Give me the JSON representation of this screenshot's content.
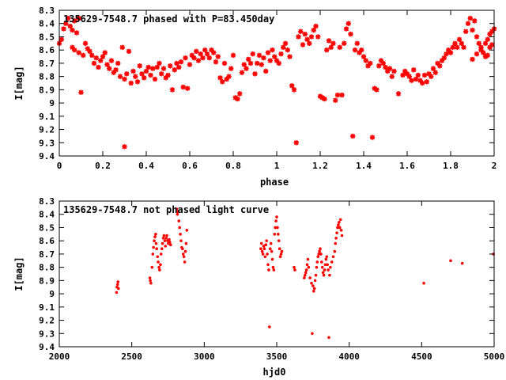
{
  "colors": {
    "points": "#ff0000",
    "axes": "#000000",
    "background": "#ffffff"
  },
  "chart_data": [
    {
      "type": "scatter",
      "title": "135629-7548.7 phased with P=83.450day",
      "xlabel": "phase",
      "ylabel": "I[mag]",
      "xlim": [
        0,
        2
      ],
      "ylim": [
        8.3,
        9.4
      ],
      "y_inverted": true,
      "x_ticks": [
        "0",
        "0.2",
        "0.4",
        "0.6",
        "0.8",
        "1",
        "1.2",
        "1.4",
        "1.6",
        "1.8",
        "2"
      ],
      "y_ticks": [
        "8.3",
        "8.4",
        "8.5",
        "8.6",
        "8.7",
        "8.8",
        "8.9",
        "9",
        "9.1",
        "9.2",
        "9.3",
        "9.4"
      ],
      "grid": false,
      "legend": "none",
      "marker": "star",
      "points": [
        [
          0.0,
          8.55
        ],
        [
          0.01,
          8.52
        ],
        [
          0.02,
          8.44
        ],
        [
          0.03,
          8.4
        ],
        [
          0.04,
          8.36
        ],
        [
          0.05,
          8.42
        ],
        [
          0.06,
          8.45
        ],
        [
          0.07,
          8.38
        ],
        [
          0.08,
          8.47
        ],
        [
          0.09,
          8.36
        ],
        [
          0.06,
          8.58
        ],
        [
          0.07,
          8.6
        ],
        [
          0.09,
          8.62
        ],
        [
          0.1,
          8.92
        ],
        [
          0.11,
          8.64
        ],
        [
          0.12,
          8.55
        ],
        [
          0.13,
          8.59
        ],
        [
          0.14,
          8.61
        ],
        [
          0.15,
          8.64
        ],
        [
          0.16,
          8.7
        ],
        [
          0.17,
          8.66
        ],
        [
          0.18,
          8.73
        ],
        [
          0.19,
          8.68
        ],
        [
          0.2,
          8.65
        ],
        [
          0.21,
          8.62
        ],
        [
          0.22,
          8.71
        ],
        [
          0.23,
          8.74
        ],
        [
          0.24,
          8.68
        ],
        [
          0.25,
          8.77
        ],
        [
          0.26,
          8.75
        ],
        [
          0.27,
          8.7
        ],
        [
          0.28,
          8.8
        ],
        [
          0.29,
          8.58
        ],
        [
          0.3,
          8.82
        ],
        [
          0.3,
          9.33
        ],
        [
          0.31,
          8.78
        ],
        [
          0.32,
          8.61
        ],
        [
          0.33,
          8.85
        ],
        [
          0.34,
          8.76
        ],
        [
          0.35,
          8.8
        ],
        [
          0.36,
          8.84
        ],
        [
          0.37,
          8.72
        ],
        [
          0.38,
          8.78
        ],
        [
          0.39,
          8.81
        ],
        [
          0.4,
          8.76
        ],
        [
          0.41,
          8.73
        ],
        [
          0.42,
          8.79
        ],
        [
          0.43,
          8.74
        ],
        [
          0.44,
          8.82
        ],
        [
          0.45,
          8.73
        ],
        [
          0.46,
          8.7
        ],
        [
          0.47,
          8.78
        ],
        [
          0.48,
          8.74
        ],
        [
          0.49,
          8.81
        ],
        [
          0.5,
          8.79
        ],
        [
          0.51,
          8.72
        ],
        [
          0.52,
          8.9
        ],
        [
          0.53,
          8.75
        ],
        [
          0.54,
          8.7
        ],
        [
          0.55,
          8.73
        ],
        [
          0.56,
          8.69
        ],
        [
          0.57,
          8.88
        ],
        [
          0.58,
          8.66
        ],
        [
          0.59,
          8.89
        ],
        [
          0.6,
          8.71
        ],
        [
          0.61,
          8.64
        ],
        [
          0.62,
          8.66
        ],
        [
          0.63,
          8.61
        ],
        [
          0.64,
          8.68
        ],
        [
          0.65,
          8.63
        ],
        [
          0.66,
          8.66
        ],
        [
          0.67,
          8.6
        ],
        [
          0.68,
          8.63
        ],
        [
          0.69,
          8.66
        ],
        [
          0.7,
          8.6
        ],
        [
          0.71,
          8.62
        ],
        [
          0.72,
          8.69
        ],
        [
          0.73,
          8.65
        ],
        [
          0.74,
          8.81
        ],
        [
          0.75,
          8.84
        ],
        [
          0.76,
          8.7
        ],
        [
          0.77,
          8.82
        ],
        [
          0.78,
          8.8
        ],
        [
          0.79,
          8.74
        ],
        [
          0.8,
          8.64
        ],
        [
          0.81,
          8.96
        ],
        [
          0.82,
          8.97
        ],
        [
          0.83,
          8.93
        ],
        [
          0.84,
          8.77
        ],
        [
          0.85,
          8.71
        ],
        [
          0.86,
          8.74
        ],
        [
          0.87,
          8.67
        ],
        [
          0.88,
          8.7
        ],
        [
          0.89,
          8.63
        ],
        [
          0.9,
          8.78
        ],
        [
          0.91,
          8.7
        ],
        [
          0.92,
          8.64
        ],
        [
          0.93,
          8.71
        ],
        [
          0.94,
          8.66
        ],
        [
          0.95,
          8.76
        ],
        [
          0.96,
          8.62
        ],
        [
          0.97,
          8.68
        ],
        [
          0.98,
          8.6
        ],
        [
          0.99,
          8.65
        ],
        [
          1.0,
          8.68
        ],
        [
          1.01,
          8.7
        ],
        [
          1.02,
          8.63
        ],
        [
          1.03,
          8.58
        ],
        [
          1.04,
          8.55
        ],
        [
          1.05,
          8.6
        ],
        [
          1.06,
          8.65
        ],
        [
          1.07,
          8.87
        ],
        [
          1.08,
          8.9
        ],
        [
          1.09,
          9.3
        ],
        [
          1.1,
          8.5
        ],
        [
          1.11,
          8.46
        ],
        [
          1.12,
          8.56
        ],
        [
          1.13,
          8.48
        ],
        [
          1.14,
          8.52
        ],
        [
          1.15,
          8.55
        ],
        [
          1.16,
          8.5
        ],
        [
          1.17,
          8.45
        ],
        [
          1.18,
          8.42
        ],
        [
          1.19,
          8.5
        ],
        [
          1.2,
          8.95
        ],
        [
          1.21,
          8.96
        ],
        [
          1.22,
          8.97
        ],
        [
          1.23,
          8.6
        ],
        [
          1.24,
          8.53
        ],
        [
          1.25,
          8.58
        ],
        [
          1.26,
          8.55
        ],
        [
          1.27,
          8.98
        ],
        [
          1.28,
          8.94
        ],
        [
          1.29,
          8.58
        ],
        [
          1.3,
          8.94
        ],
        [
          1.31,
          8.55
        ],
        [
          1.32,
          8.44
        ],
        [
          1.33,
          8.4
        ],
        [
          1.34,
          8.48
        ],
        [
          1.35,
          9.25
        ],
        [
          1.36,
          8.6
        ],
        [
          1.37,
          8.55
        ],
        [
          1.38,
          8.62
        ],
        [
          1.39,
          8.6
        ],
        [
          1.4,
          8.65
        ],
        [
          1.41,
          8.68
        ],
        [
          1.42,
          8.72
        ],
        [
          1.43,
          8.7
        ],
        [
          1.44,
          9.26
        ],
        [
          1.45,
          8.89
        ],
        [
          1.46,
          8.9
        ],
        [
          1.47,
          8.72
        ],
        [
          1.48,
          8.68
        ],
        [
          1.49,
          8.7
        ],
        [
          1.5,
          8.73
        ],
        [
          1.51,
          8.76
        ],
        [
          1.52,
          8.74
        ],
        [
          1.53,
          8.8
        ],
        [
          1.54,
          8.76
        ],
        [
          1.56,
          8.93
        ],
        [
          1.58,
          8.79
        ],
        [
          1.59,
          8.76
        ],
        [
          1.6,
          8.78
        ],
        [
          1.61,
          8.8
        ],
        [
          1.62,
          8.83
        ],
        [
          1.63,
          8.75
        ],
        [
          1.64,
          8.82
        ],
        [
          1.65,
          8.79
        ],
        [
          1.66,
          8.83
        ],
        [
          1.67,
          8.85
        ],
        [
          1.68,
          8.79
        ],
        [
          1.69,
          8.84
        ],
        [
          1.7,
          8.78
        ],
        [
          1.71,
          8.8
        ],
        [
          1.72,
          8.74
        ],
        [
          1.73,
          8.77
        ],
        [
          1.74,
          8.7
        ],
        [
          1.75,
          8.72
        ],
        [
          1.76,
          8.68
        ],
        [
          1.77,
          8.66
        ],
        [
          1.78,
          8.63
        ],
        [
          1.79,
          8.6
        ],
        [
          1.8,
          8.62
        ],
        [
          1.81,
          8.58
        ],
        [
          1.82,
          8.55
        ],
        [
          1.83,
          8.58
        ],
        [
          1.84,
          8.52
        ],
        [
          1.85,
          8.55
        ],
        [
          1.86,
          8.58
        ],
        [
          1.87,
          8.46
        ],
        [
          1.88,
          8.4
        ],
        [
          1.89,
          8.36
        ],
        [
          1.9,
          8.45
        ],
        [
          1.91,
          8.38
        ],
        [
          1.92,
          8.5
        ],
        [
          1.93,
          8.55
        ],
        [
          1.94,
          8.58
        ],
        [
          1.95,
          8.62
        ],
        [
          1.96,
          8.55
        ],
        [
          1.97,
          8.52
        ],
        [
          1.98,
          8.48
        ],
        [
          1.99,
          8.46
        ],
        [
          2.0,
          8.44
        ],
        [
          1.94,
          8.6
        ],
        [
          1.96,
          8.65
        ],
        [
          1.98,
          8.58
        ],
        [
          1.97,
          8.64
        ],
        [
          1.99,
          8.56
        ],
        [
          1.9,
          8.67
        ],
        [
          1.92,
          8.63
        ]
      ]
    },
    {
      "type": "scatter",
      "title": "135629-7548.7 not phased light curve",
      "xlabel": "hjd0",
      "ylabel": "I[mag]",
      "xlim": [
        2000,
        5000
      ],
      "ylim": [
        8.3,
        9.4
      ],
      "y_inverted": true,
      "x_ticks": [
        "2000",
        "2500",
        "3000",
        "3500",
        "4000",
        "4500",
        "5000"
      ],
      "y_ticks": [
        "8.3",
        "8.4",
        "8.5",
        "8.6",
        "8.7",
        "8.8",
        "8.9",
        "9",
        "9.1",
        "9.2",
        "9.3",
        "9.4"
      ],
      "grid": false,
      "legend": "none",
      "marker": "dot",
      "points": [
        [
          2395,
          8.99
        ],
        [
          2398,
          8.95
        ],
        [
          2402,
          8.93
        ],
        [
          2405,
          8.91
        ],
        [
          2408,
          8.96
        ],
        [
          2625,
          8.88
        ],
        [
          2628,
          8.9
        ],
        [
          2632,
          8.92
        ],
        [
          2640,
          8.8
        ],
        [
          2645,
          8.7
        ],
        [
          2650,
          8.65
        ],
        [
          2655,
          8.6
        ],
        [
          2660,
          8.57
        ],
        [
          2665,
          8.55
        ],
        [
          2668,
          8.62
        ],
        [
          2672,
          8.66
        ],
        [
          2678,
          8.72
        ],
        [
          2682,
          8.76
        ],
        [
          2688,
          8.8
        ],
        [
          2692,
          8.82
        ],
        [
          2698,
          8.78
        ],
        [
          2702,
          8.7
        ],
        [
          2708,
          8.66
        ],
        [
          2712,
          8.62
        ],
        [
          2718,
          8.58
        ],
        [
          2722,
          8.56
        ],
        [
          2728,
          8.6
        ],
        [
          2732,
          8.64
        ],
        [
          2738,
          8.58
        ],
        [
          2742,
          8.56
        ],
        [
          2748,
          8.6
        ],
        [
          2752,
          8.62
        ],
        [
          2758,
          8.59
        ],
        [
          2762,
          8.61
        ],
        [
          2768,
          8.63
        ],
        [
          2810,
          8.36
        ],
        [
          2815,
          8.4
        ],
        [
          2820,
          8.38
        ],
        [
          2825,
          8.45
        ],
        [
          2830,
          8.5
        ],
        [
          2835,
          8.55
        ],
        [
          2840,
          8.6
        ],
        [
          2845,
          8.65
        ],
        [
          2850,
          8.66
        ],
        [
          2855,
          8.7
        ],
        [
          2860,
          8.72
        ],
        [
          2865,
          8.76
        ],
        [
          2870,
          8.68
        ],
        [
          2875,
          8.62
        ],
        [
          2880,
          8.52
        ],
        [
          3390,
          8.66
        ],
        [
          3395,
          8.62
        ],
        [
          3400,
          8.68
        ],
        [
          3405,
          8.7
        ],
        [
          3410,
          8.64
        ],
        [
          3415,
          8.66
        ],
        [
          3420,
          8.72
        ],
        [
          3425,
          8.63
        ],
        [
          3430,
          8.6
        ],
        [
          3435,
          8.7
        ],
        [
          3440,
          8.78
        ],
        [
          3445,
          8.82
        ],
        [
          3450,
          9.25
        ],
        [
          3455,
          8.66
        ],
        [
          3460,
          8.62
        ],
        [
          3465,
          8.68
        ],
        [
          3470,
          8.74
        ],
        [
          3475,
          8.8
        ],
        [
          3480,
          8.82
        ],
        [
          3485,
          8.55
        ],
        [
          3490,
          8.5
        ],
        [
          3495,
          8.45
        ],
        [
          3500,
          8.42
        ],
        [
          3505,
          8.5
        ],
        [
          3510,
          8.55
        ],
        [
          3515,
          8.6
        ],
        [
          3520,
          8.66
        ],
        [
          3525,
          8.72
        ],
        [
          3530,
          8.7
        ],
        [
          3535,
          8.68
        ],
        [
          3620,
          8.8
        ],
        [
          3625,
          8.82
        ],
        [
          3690,
          8.88
        ],
        [
          3695,
          8.86
        ],
        [
          3700,
          8.84
        ],
        [
          3705,
          8.82
        ],
        [
          3710,
          8.78
        ],
        [
          3715,
          8.74
        ],
        [
          3720,
          8.8
        ],
        [
          3730,
          8.88
        ],
        [
          3740,
          8.92
        ],
        [
          3745,
          9.3
        ],
        [
          3750,
          8.94
        ],
        [
          3755,
          8.98
        ],
        [
          3760,
          8.96
        ],
        [
          3765,
          8.9
        ],
        [
          3770,
          8.86
        ],
        [
          3775,
          8.8
        ],
        [
          3780,
          8.76
        ],
        [
          3785,
          8.72
        ],
        [
          3790,
          8.7
        ],
        [
          3795,
          8.68
        ],
        [
          3800,
          8.66
        ],
        [
          3805,
          8.7
        ],
        [
          3810,
          8.76
        ],
        [
          3815,
          8.8
        ],
        [
          3820,
          8.84
        ],
        [
          3825,
          8.86
        ],
        [
          3830,
          8.82
        ],
        [
          3835,
          8.78
        ],
        [
          3840,
          8.74
        ],
        [
          3845,
          8.72
        ],
        [
          3850,
          8.78
        ],
        [
          3855,
          8.82
        ],
        [
          3860,
          9.33
        ],
        [
          3865,
          8.86
        ],
        [
          3870,
          8.8
        ],
        [
          3880,
          8.76
        ],
        [
          3890,
          8.72
        ],
        [
          3900,
          8.68
        ],
        [
          3905,
          8.62
        ],
        [
          3910,
          8.58
        ],
        [
          3915,
          8.54
        ],
        [
          3920,
          8.5
        ],
        [
          3925,
          8.48
        ],
        [
          3930,
          8.46
        ],
        [
          3935,
          8.5
        ],
        [
          3940,
          8.44
        ],
        [
          3945,
          8.52
        ],
        [
          3950,
          8.56
        ],
        [
          4515,
          8.92
        ],
        [
          4700,
          8.75
        ],
        [
          4780,
          8.77
        ],
        [
          4995,
          8.7
        ]
      ]
    }
  ]
}
